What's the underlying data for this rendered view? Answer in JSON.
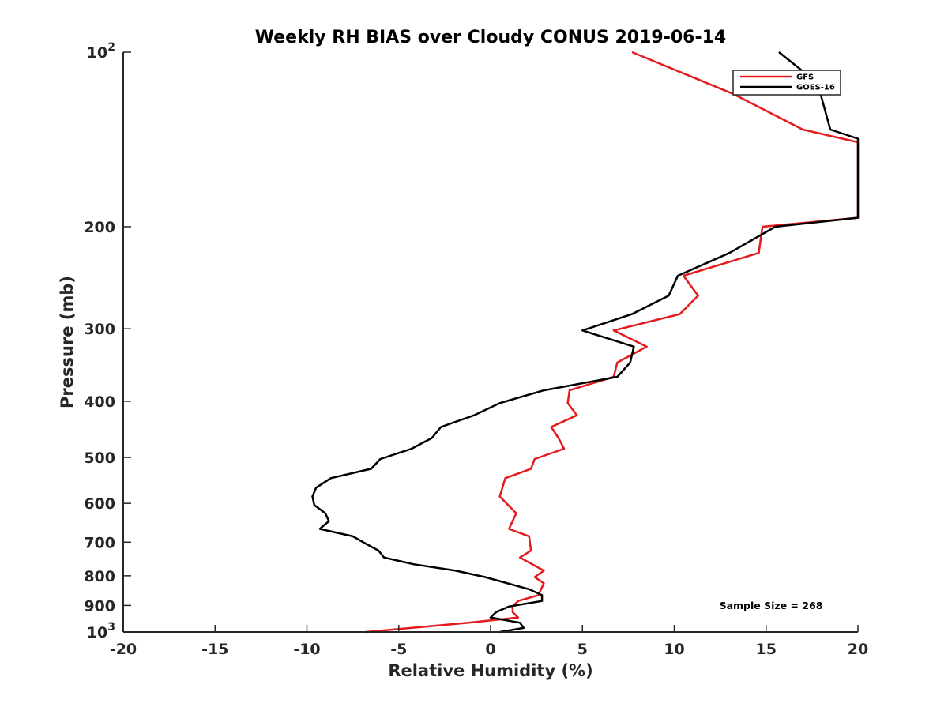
{
  "chart_data": {
    "type": "line",
    "title": "Weekly RH BIAS over Cloudy CONUS 2019-06-14",
    "xlabel": "Relative Humidity (%)",
    "ylabel": "Pressure (mb)",
    "xlim": [
      -20,
      20
    ],
    "ylim": [
      100,
      1000
    ],
    "y_scale": "log",
    "y_reversed": true,
    "x_ticks": [
      "-20",
      "-15",
      "-10",
      "-5",
      "0",
      "5",
      "10",
      "15",
      "20"
    ],
    "x_tick_values": [
      -20,
      -15,
      -10,
      -5,
      0,
      5,
      10,
      15,
      20
    ],
    "y_tick_values": [
      100,
      200,
      300,
      400,
      500,
      600,
      700,
      800,
      900,
      1000
    ],
    "y_ticks": [
      {
        "base": "10",
        "exp": "2"
      },
      {
        "text": "200"
      },
      {
        "text": "300"
      },
      {
        "text": "400"
      },
      {
        "text": "500"
      },
      {
        "text": "600"
      },
      {
        "text": "700"
      },
      {
        "text": "800"
      },
      {
        "text": "900"
      },
      {
        "base": "10",
        "exp": "3"
      }
    ],
    "legend_position": "top-right",
    "grid": false,
    "annotation": "Sample Size = 268",
    "series": [
      {
        "name": "GFS",
        "color": "#e41a1c",
        "points": [
          [
            7.7,
            100
          ],
          [
            13.2,
            118
          ],
          [
            17.0,
            136
          ],
          [
            20.0,
            143
          ],
          [
            20.0,
            193
          ],
          [
            14.8,
            200
          ],
          [
            14.6,
            222
          ],
          [
            10.5,
            243
          ],
          [
            11.3,
            263
          ],
          [
            10.3,
            283
          ],
          [
            6.7,
            302
          ],
          [
            8.5,
            322
          ],
          [
            6.9,
            343
          ],
          [
            6.7,
            363
          ],
          [
            4.3,
            383
          ],
          [
            4.2,
            403
          ],
          [
            4.7,
            423
          ],
          [
            3.3,
            443
          ],
          [
            3.7,
            463
          ],
          [
            4.0,
            483
          ],
          [
            2.4,
            503
          ],
          [
            2.2,
            523
          ],
          [
            0.8,
            543
          ],
          [
            0.5,
            584
          ],
          [
            1.4,
            624
          ],
          [
            1.0,
            664
          ],
          [
            2.1,
            684
          ],
          [
            2.2,
            724
          ],
          [
            1.6,
            744
          ],
          [
            2.9,
            784
          ],
          [
            2.4,
            804
          ],
          [
            2.9,
            824
          ],
          [
            2.6,
            864
          ],
          [
            1.5,
            884
          ],
          [
            1.2,
            904
          ],
          [
            1.2,
            924
          ],
          [
            1.5,
            944
          ],
          [
            -1.2,
            964
          ],
          [
            -6.8,
            1000
          ]
        ]
      },
      {
        "name": "GOES-16",
        "color": "#000000",
        "points": [
          [
            15.7,
            100
          ],
          [
            17.8,
            113
          ],
          [
            18.5,
            136
          ],
          [
            20.0,
            141
          ],
          [
            20.0,
            193
          ],
          [
            15.5,
            200
          ],
          [
            13.0,
            222
          ],
          [
            10.2,
            243
          ],
          [
            9.7,
            263
          ],
          [
            7.7,
            283
          ],
          [
            5.0,
            302
          ],
          [
            7.8,
            322
          ],
          [
            7.6,
            343
          ],
          [
            6.9,
            363
          ],
          [
            2.9,
            383
          ],
          [
            0.5,
            403
          ],
          [
            -0.9,
            423
          ],
          [
            -2.7,
            443
          ],
          [
            -3.2,
            463
          ],
          [
            -4.3,
            483
          ],
          [
            -6.0,
            503
          ],
          [
            -6.5,
            523
          ],
          [
            -8.7,
            543
          ],
          [
            -9.5,
            564
          ],
          [
            -9.7,
            584
          ],
          [
            -9.6,
            604
          ],
          [
            -9.0,
            624
          ],
          [
            -8.8,
            644
          ],
          [
            -9.3,
            664
          ],
          [
            -7.5,
            684
          ],
          [
            -6.8,
            704
          ],
          [
            -6.1,
            724
          ],
          [
            -5.8,
            744
          ],
          [
            -4.2,
            764
          ],
          [
            -1.9,
            784
          ],
          [
            -0.3,
            804
          ],
          [
            2.1,
            844
          ],
          [
            2.8,
            864
          ],
          [
            2.8,
            884
          ],
          [
            1.0,
            904
          ],
          [
            0.3,
            924
          ],
          [
            0.0,
            944
          ],
          [
            1.6,
            964
          ],
          [
            1.8,
            984
          ],
          [
            0.5,
            1000
          ]
        ]
      }
    ]
  }
}
